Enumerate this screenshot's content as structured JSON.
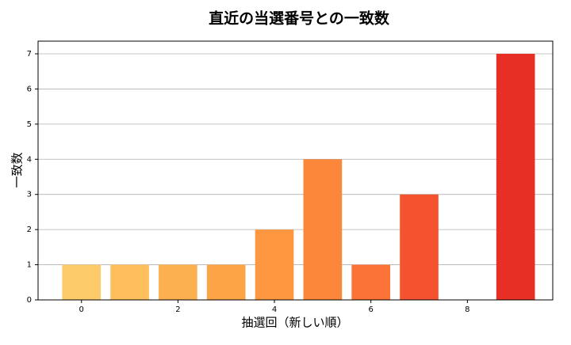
{
  "chart_data": {
    "type": "bar",
    "title": "直近の当選番号との一致数",
    "x_label": "抽選回（新しい順）",
    "y_label": "一致数",
    "x": [
      0,
      1,
      2,
      3,
      4,
      5,
      6,
      7,
      8,
      9
    ],
    "values": [
      1,
      1,
      1,
      1,
      2,
      4,
      1,
      3,
      0,
      7
    ],
    "colors": [
      "#fecb6b",
      "#febf5c",
      "#fdb04f",
      "#fda446",
      "#fd9740",
      "#fc873b",
      "#fb7336",
      "#f55330",
      "#ee4029",
      "#e82f25"
    ],
    "xlim": [
      -0.9,
      9.77
    ],
    "xticks": [
      0,
      2,
      4,
      6,
      8
    ],
    "ylim": [
      0,
      7.36
    ],
    "yticks": [
      0,
      1,
      2,
      3,
      4,
      5,
      6,
      7
    ],
    "grid": true
  }
}
